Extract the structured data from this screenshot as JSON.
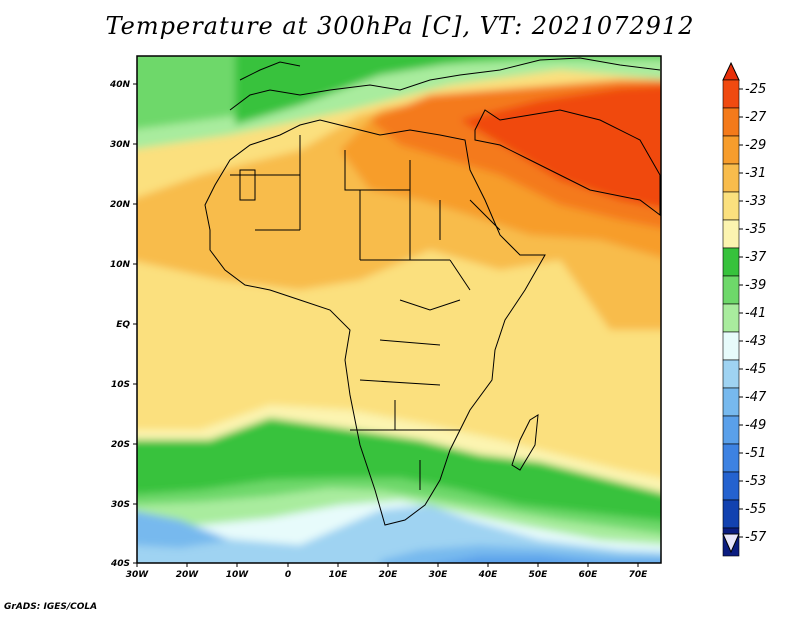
{
  "title": "Temperature at 300hPa [C], VT: 2021072912",
  "footer": "GrADS: IGES/COLA",
  "axes": {
    "x_ticks": [
      "30W",
      "20W",
      "10W",
      "0",
      "10E",
      "20E",
      "30E",
      "40E",
      "50E",
      "60E",
      "70E"
    ],
    "y_ticks": [
      "40N",
      "30N",
      "20N",
      "10N",
      "EQ",
      "10S",
      "20S",
      "30S",
      "40S"
    ]
  },
  "colorbar": {
    "labels": [
      "-25",
      "-27",
      "-29",
      "-31",
      "-33",
      "-35",
      "-37",
      "-39",
      "-41",
      "-43",
      "-45",
      "-47",
      "-49",
      "-51",
      "-53",
      "-55",
      "-57"
    ],
    "colors": [
      "#f04a10",
      "#f47a1a",
      "#f79d2c",
      "#f8bc4c",
      "#fbe07e",
      "#fcf4b0",
      "#37c23c",
      "#6ed86a",
      "#a9ec9e",
      "#e7fbfb",
      "#9fd3f2",
      "#77b9ee",
      "#5aa0ea",
      "#3d82e2",
      "#2462cf",
      "#1242b0",
      "#0b1d80"
    ],
    "over_color": "#e8300a",
    "under_color": "#e8e6fb"
  },
  "colors": {
    "frame": "#000000",
    "coast": "#000000"
  }
}
